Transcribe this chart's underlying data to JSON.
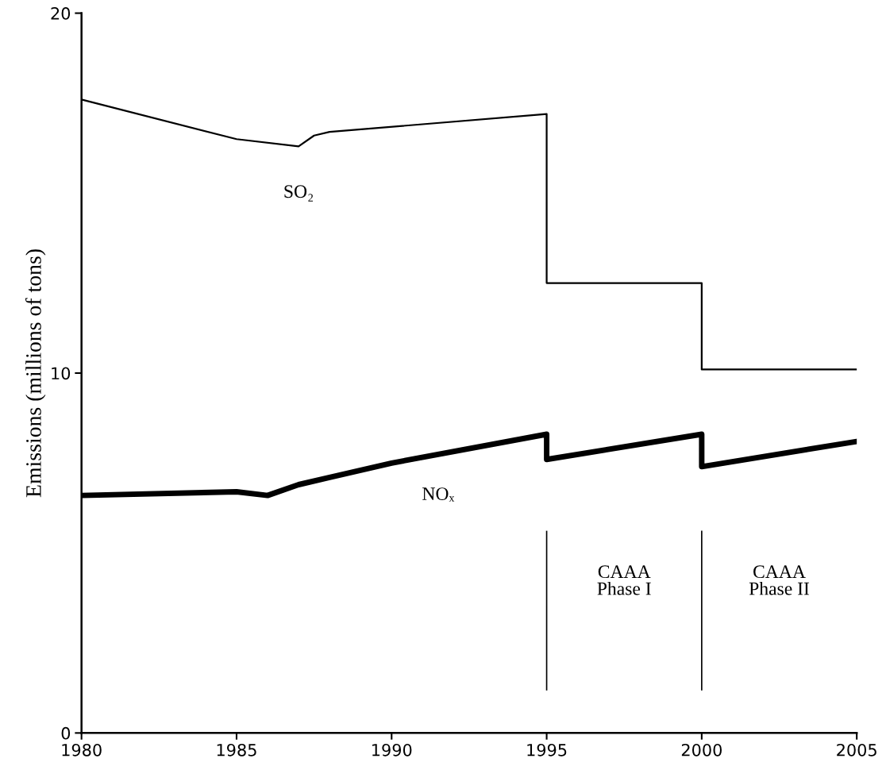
{
  "chart_data": {
    "type": "line",
    "ylabel": "Emissions (millions of tons)",
    "series": [
      {
        "name": "SO₂",
        "color": "#000000",
        "x": [
          1980,
          1985,
          1987,
          1987.5,
          1988,
          1995,
          1995,
          2000,
          2000,
          2005
        ],
        "values": [
          17.6,
          16.5,
          16.3,
          16.6,
          16.7,
          17.2,
          12.5,
          12.5,
          10.1,
          10.1
        ]
      },
      {
        "name": "NOₓ",
        "color": "#000000",
        "x": [
          1980,
          1985,
          1986,
          1987,
          1988,
          1989,
          1990,
          1995,
          1995,
          2000,
          2000,
          2005
        ],
        "values": [
          6.6,
          6.7,
          6.6,
          6.9,
          7.1,
          7.3,
          7.5,
          8.3,
          7.6,
          8.3,
          7.4,
          8.1
        ]
      }
    ],
    "annotations": [
      "CAAA\nPhase I",
      "CAAA\nPhase II"
    ],
    "ref_lines": [
      {
        "axis": "x",
        "value": 1995
      },
      {
        "axis": "x",
        "value": 2000
      }
    ],
    "xlim": [
      1980,
      2005
    ],
    "ylim": [
      0,
      20
    ],
    "xticks": [
      1980,
      1985,
      1990,
      1995,
      2000,
      2005
    ],
    "yticks": [
      0,
      10,
      20
    ],
    "grid": false,
    "legend": false
  }
}
